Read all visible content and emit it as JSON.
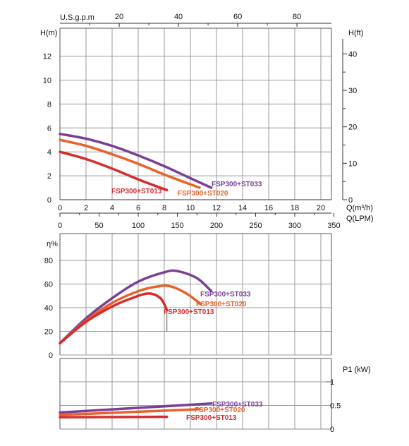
{
  "colors": {
    "ST033": "#7a3f97",
    "ST020": "#e8622a",
    "ST013": "#d52c2e",
    "grid": "#9a9a9a",
    "gray_tick": "#8a8a8a"
  },
  "top_axis": {
    "label": "U.S.g.p.m",
    "ticks": [
      "20",
      "40",
      "60",
      "80"
    ],
    "values": [
      20,
      40,
      60,
      80
    ]
  },
  "bottom_axes": {
    "q_m3h_label": "Q(m³/h)",
    "q_m3h_ticks": [
      "0",
      "2",
      "4",
      "6",
      "8",
      "10",
      "12",
      "14",
      "16",
      "18",
      "20"
    ],
    "q_lpm_label": "Q(LPM)",
    "q_lpm_ticks": [
      "0",
      "50",
      "100",
      "150",
      "200",
      "250",
      "300",
      "350"
    ]
  },
  "chart_data": [
    {
      "type": "line",
      "panel": "head",
      "ylabel": "H(m)",
      "ylabel_right": "H(ft)",
      "xlabel": "Q(m³/h)",
      "xlim": [
        0,
        20
      ],
      "ylim": [
        0,
        14
      ],
      "yticks": [
        "0",
        "2",
        "4",
        "6",
        "8",
        "10",
        "12"
      ],
      "yticks_right": [
        "0",
        "10",
        "20",
        "30",
        "40"
      ],
      "grid": true,
      "series": [
        {
          "name": "FSP300+ST033",
          "key": "ST033",
          "x": [
            0,
            2,
            4,
            6,
            8,
            10,
            11.6
          ],
          "y": [
            5.5,
            5.1,
            4.5,
            3.7,
            2.8,
            1.8,
            1.0
          ]
        },
        {
          "name": "FSP300+ST020",
          "key": "ST020",
          "x": [
            0,
            2,
            4,
            6,
            8,
            10.7
          ],
          "y": [
            5.0,
            4.5,
            3.8,
            3.0,
            2.1,
            1.0
          ]
        },
        {
          "name": "FSP300+ST013",
          "key": "ST013",
          "x": [
            0,
            2,
            4,
            6,
            8.2
          ],
          "y": [
            4.0,
            3.4,
            2.6,
            1.7,
            0.8
          ]
        }
      ]
    },
    {
      "type": "line",
      "panel": "efficiency",
      "ylabel": "η%",
      "xlim": [
        0,
        20
      ],
      "ylim": [
        0,
        90
      ],
      "yticks": [
        "0",
        "20",
        "40",
        "60",
        "80"
      ],
      "grid": true,
      "series": [
        {
          "name": "FSP300+ST033",
          "key": "ST033",
          "x": [
            0,
            2,
            4,
            6,
            8,
            9,
            10.5,
            11.6
          ],
          "y": [
            10,
            31,
            48,
            62,
            70,
            71,
            65,
            54
          ]
        },
        {
          "name": "FSP300+ST020",
          "key": "ST020",
          "x": [
            0,
            2,
            4,
            6,
            7.5,
            8.5,
            9.7,
            10.8
          ],
          "y": [
            10,
            29,
            44,
            54,
            58,
            58,
            52,
            43
          ]
        },
        {
          "name": "FSP300+ST013",
          "key": "ST013",
          "x": [
            0,
            2,
            4,
            5.5,
            6.8,
            7.7,
            8.2
          ],
          "y": [
            10,
            28,
            41,
            48,
            52,
            48,
            38
          ]
        }
      ]
    },
    {
      "type": "line",
      "panel": "power",
      "ylabel": "P1 (kW)",
      "xlim": [
        0,
        20
      ],
      "ylim": [
        0,
        1
      ],
      "yticks": [
        "0",
        "0.5",
        "1"
      ],
      "grid": true,
      "series": [
        {
          "name": "FSP300+ST033",
          "key": "ST033",
          "x": [
            0,
            11.6
          ],
          "y": [
            0.35,
            0.54
          ]
        },
        {
          "name": "FSP300+ST020",
          "key": "ST020",
          "x": [
            0,
            10.7
          ],
          "y": [
            0.3,
            0.42
          ]
        },
        {
          "name": "FSP300+ST013",
          "key": "ST013",
          "x": [
            0,
            8.2
          ],
          "y": [
            0.25,
            0.26
          ]
        }
      ]
    }
  ]
}
